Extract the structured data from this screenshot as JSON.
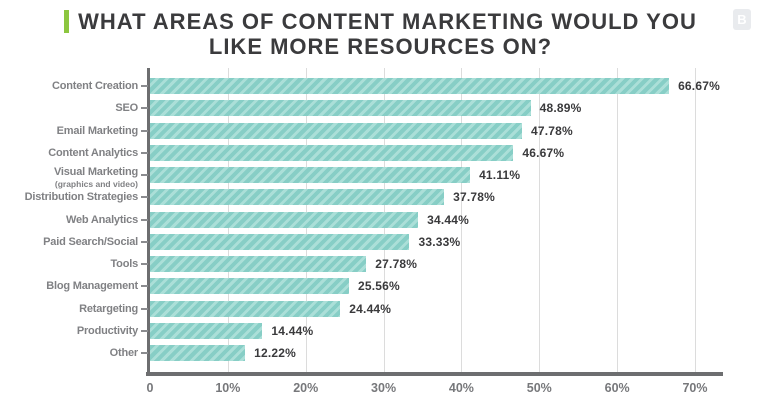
{
  "header": {
    "line1": "WHAT AREAS OF CONTENT MARKETING WOULD YOU",
    "line2": "LIKE MORE RESOURCES ON?"
  },
  "logo": {
    "letter": "B"
  },
  "colors": {
    "accent_green": "#8cc63f",
    "bar_teal_base": "#87cec6",
    "bar_teal_stripe": "#abdfd8",
    "axis_gray": "#6d6e70",
    "label_gray": "#808184",
    "value_dark": "#3a3a3c",
    "gridline_gray": "#dcdcdc",
    "logo_bg": "#e9ebee"
  },
  "chart_data": {
    "type": "bar",
    "orientation": "horizontal",
    "title": "WHAT AREAS OF CONTENT MARKETING WOULD YOU LIKE MORE RESOURCES ON?",
    "categories": [
      "Content Creation",
      "SEO",
      "Email Marketing",
      "Content Analytics",
      "Visual Marketing",
      "Distribution Strategies",
      "Web Analytics",
      "Paid Search/Social",
      "Tools",
      "Blog Management",
      "Retargeting",
      "Productivity",
      "Other"
    ],
    "sublabels": [
      "",
      "",
      "",
      "",
      "(graphics and video)",
      "",
      "",
      "",
      "",
      "",
      "",
      "",
      ""
    ],
    "values": [
      66.67,
      48.89,
      47.78,
      46.67,
      41.11,
      37.78,
      34.44,
      33.33,
      27.78,
      25.56,
      24.44,
      14.44,
      12.22
    ],
    "value_labels": [
      "66.67%",
      "48.89%",
      "47.78%",
      "46.67%",
      "41.11%",
      "37.78%",
      "34.44%",
      "33.33%",
      "27.78%",
      "25.56%",
      "24.44%",
      "14.44%",
      "12.22%"
    ],
    "x_tick_labels": [
      "0",
      "10%",
      "20%",
      "30%",
      "40%",
      "50%",
      "60%",
      "70%"
    ],
    "x_tick_values": [
      0,
      10,
      20,
      30,
      40,
      50,
      60,
      70
    ],
    "xlabel": "",
    "ylabel": "",
    "xlim": [
      0,
      73.5
    ],
    "grid": "vertical-only",
    "legend": "none"
  }
}
